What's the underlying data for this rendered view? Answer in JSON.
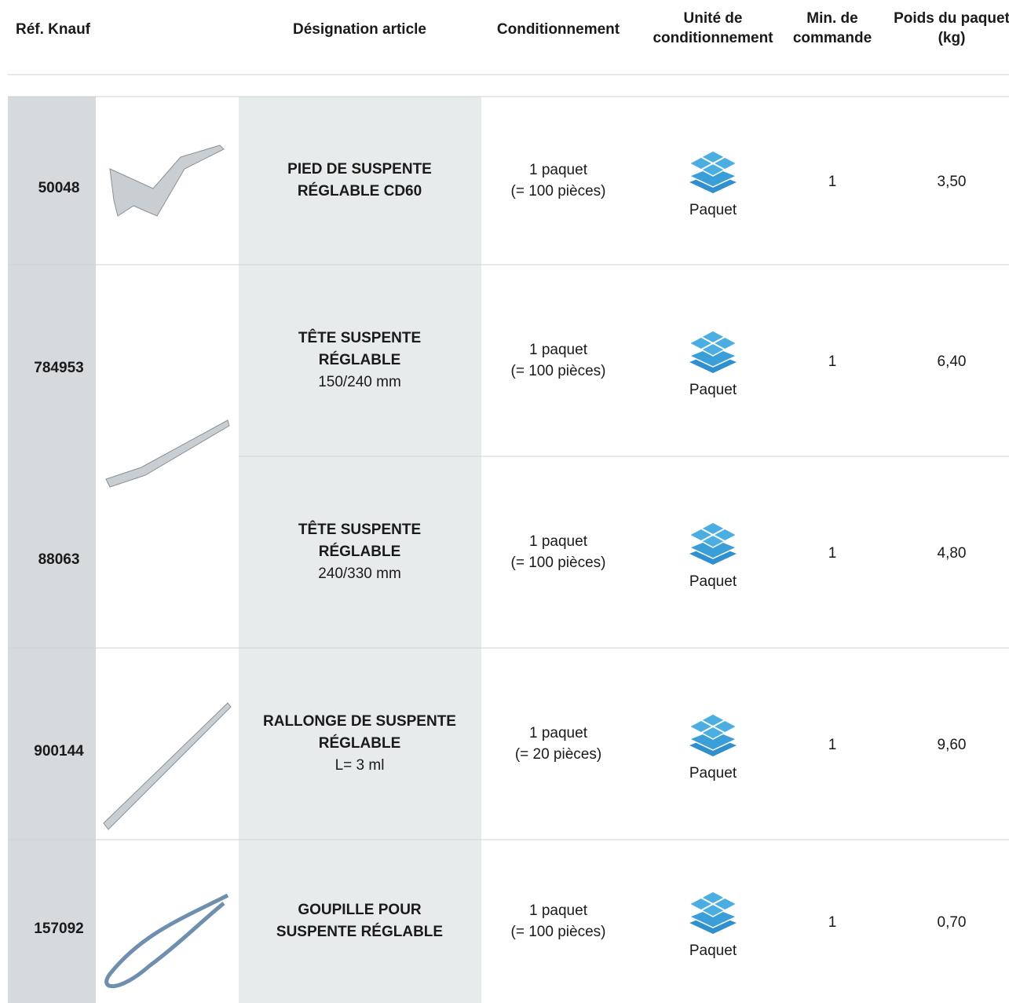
{
  "header": {
    "columns": [
      [
        "Réf. Knauf"
      ],
      [
        "Désignation article"
      ],
      [
        "Conditionnement"
      ],
      [
        "Unité de",
        "conditionnement"
      ],
      [
        "Min. de",
        "commande"
      ],
      [
        "Poids du paquet",
        "(kg)"
      ]
    ]
  },
  "table": {
    "rows": [
      {
        "ref": "50048",
        "title": [
          "PIED DE SUSPENTE",
          "RÉGLABLE CD60"
        ],
        "detail": null,
        "packaging": [
          "1 paquet",
          "(= 100 pièces)"
        ],
        "unit": "Paquet",
        "min": "1",
        "weight": "3,50"
      },
      {
        "ref": "784953",
        "title": [
          "TÊTE SUSPENTE",
          "RÉGLABLE"
        ],
        "detail": "150/240 mm",
        "packaging": [
          "1 paquet",
          "(= 100 pièces)"
        ],
        "unit": "Paquet",
        "min": "1",
        "weight": "6,40"
      },
      {
        "ref": "88063",
        "title": [
          "TÊTE SUSPENTE",
          "RÉGLABLE"
        ],
        "detail": "240/330 mm",
        "packaging": [
          "1 paquet",
          "(= 100 pièces)"
        ],
        "unit": "Paquet",
        "min": "1",
        "weight": "4,80"
      },
      {
        "ref": "900144",
        "title": [
          "RALLONGE DE SUSPENTE",
          "RÉGLABLE"
        ],
        "detail": "L= 3 ml",
        "packaging": [
          "1 paquet",
          "(= 20 pièces)"
        ],
        "unit": "Paquet",
        "min": "1",
        "weight": "9,60"
      },
      {
        "ref": "157092",
        "title": [
          "GOUPILLE POUR",
          "SUSPENTE RÉGLABLE"
        ],
        "detail": null,
        "packaging": [
          "1 paquet",
          "(= 100 pièces)"
        ],
        "unit": "Paquet",
        "min": "1",
        "weight": "0,70"
      }
    ]
  }
}
